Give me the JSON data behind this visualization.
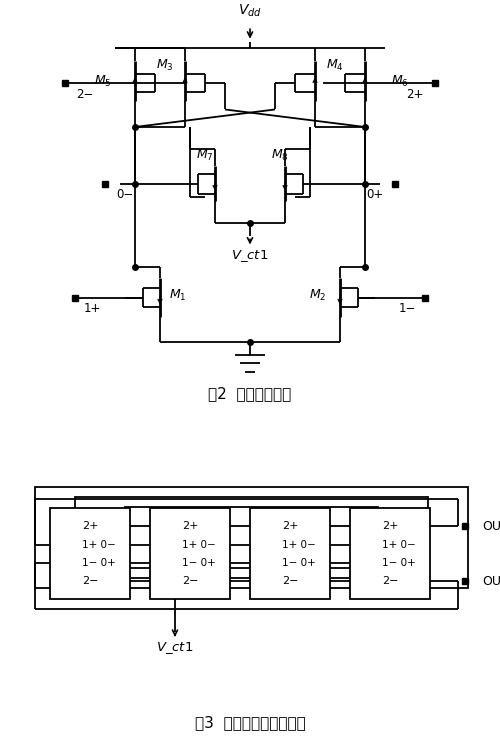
{
  "fig2_caption": "图2  差分延时单元",
  "fig3_caption": "图3  差分环形压控振荡器",
  "vdd_label": "$V_{dd}$",
  "vct1_label": "$V\\_ct1$",
  "out_plus": "OUT+",
  "out_minus": "OUT-",
  "bg_color": "#ffffff",
  "line_color": "#000000",
  "font_size_label": 9,
  "font_size_caption": 11,
  "mosfet_labels": [
    "$M_5$",
    "$M_6$",
    "$M_3$",
    "$M_4$",
    "$M_7$",
    "$M_8$",
    "$M_1$",
    "$M_2$"
  ],
  "port_labels_left": [
    "2-",
    "0-",
    "1+"
  ],
  "port_labels_right": [
    "2+",
    "0+",
    "1-"
  ],
  "cell_port_labels": [
    "2+",
    "1+ 0-",
    "1- 0+",
    "2-"
  ]
}
